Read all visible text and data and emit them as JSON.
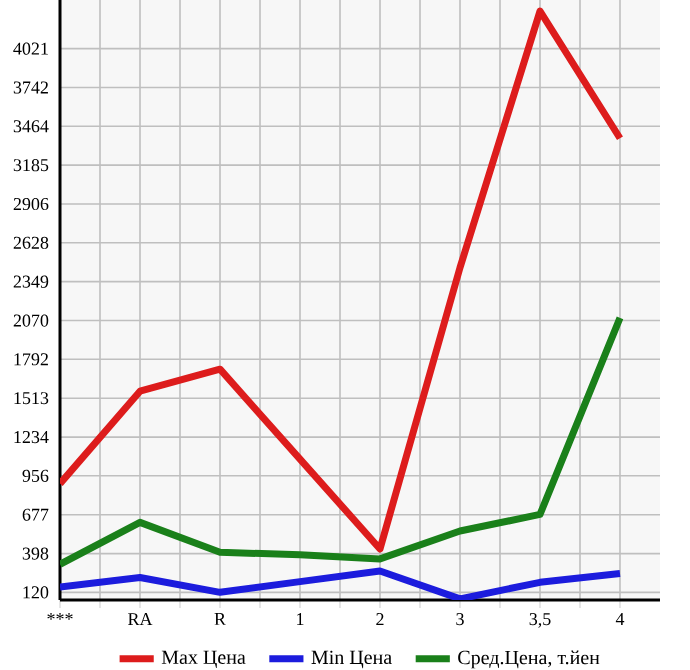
{
  "chart_data": {
    "type": "line",
    "categories": [
      "***",
      "RA",
      "R",
      "1",
      "2",
      "3",
      "3,5",
      "4"
    ],
    "series": [
      {
        "name": "Max Цена",
        "color": "#dd1c1c",
        "values": [
          900,
          1563,
          1721,
          1076,
          431,
          2450,
          4290,
          3378
        ]
      },
      {
        "name": "Min Цена",
        "color": "#1c1cdd",
        "values": [
          159,
          226,
          120,
          197,
          273,
          73,
          192,
          255
        ]
      },
      {
        "name": "Сред.Цена, т.йен",
        "color": "#1a801a",
        "values": [
          321,
          622,
          407,
          390,
          360,
          560,
          679,
          2089
        ]
      }
    ],
    "ylim": [
      65,
      4370
    ],
    "yticks": [
      120,
      398,
      677,
      956,
      1234,
      1513,
      1792,
      2070,
      2349,
      2628,
      2906,
      3185,
      3464,
      3742,
      4021
    ],
    "grid": true,
    "legend": "bottom",
    "marker": "none",
    "line_style": "solid"
  }
}
